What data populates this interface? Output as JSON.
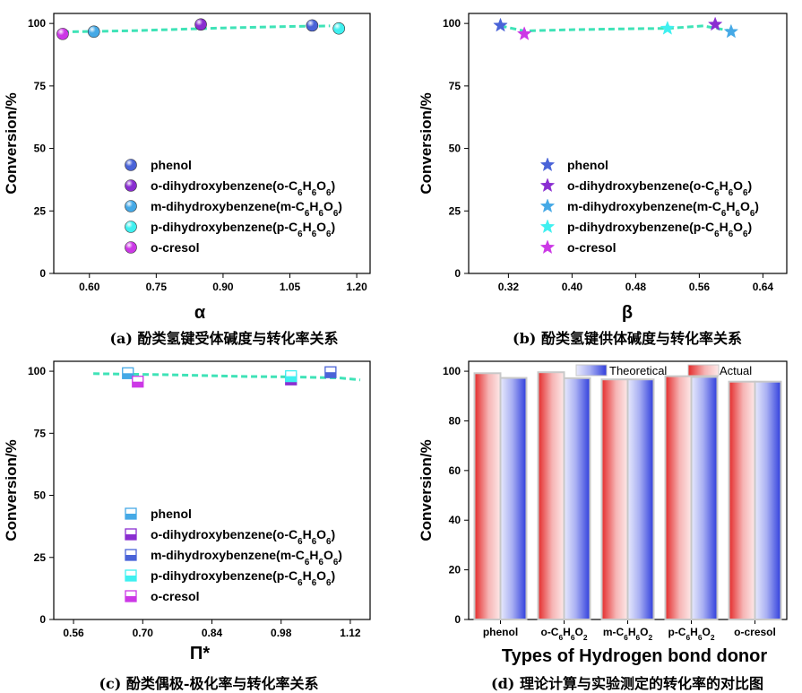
{
  "chart_data": [
    {
      "id": "a",
      "type": "scatter",
      "caption": "(a) 酚类氢键受体碱度与转化率关系",
      "xlabel": "α",
      "ylabel": "Conversion/%",
      "xlim": [
        0.52,
        1.23
      ],
      "ylim": [
        0,
        104
      ],
      "xticks": [
        0.6,
        0.75,
        0.9,
        1.05,
        1.2
      ],
      "xtick_labels": [
        "0.60",
        "0.75",
        "0.90",
        "1.05",
        "1.20"
      ],
      "yticks": [
        0,
        25,
        50,
        75,
        100
      ],
      "ytick_labels": [
        "0",
        "25",
        "50",
        "75",
        "100"
      ],
      "marker": "sphere",
      "trend": [
        [
          0.54,
          96.6
        ],
        [
          0.7,
          97.1
        ],
        [
          0.9,
          98.2
        ],
        [
          1.05,
          98.8
        ],
        [
          1.14,
          99.0
        ]
      ],
      "series": [
        {
          "name": "phenol",
          "color": "#4a63d8",
          "points": [
            [
              1.1,
              99.2
            ]
          ]
        },
        {
          "name": "o-dihydroxybenzene(o-C",
          "sub": "6",
          "mid": "H",
          "sub2": "6",
          "mid2": "O",
          "sub3": "6",
          "close": ")",
          "color": "#8a2ed1",
          "points": [
            [
              0.85,
              99.6
            ]
          ]
        },
        {
          "name": "m-dihydroxybenzene(m-C",
          "sub": "6",
          "mid": "H",
          "sub2": "6",
          "mid2": "O",
          "sub3": "6",
          "close": ")",
          "color": "#45a9e6",
          "points": [
            [
              0.61,
              96.7
            ]
          ]
        },
        {
          "name": "p-dihydroxybenzene(p-C",
          "sub": "6",
          "mid": "H",
          "sub2": "6",
          "mid2": "O",
          "sub3": "6",
          "close": ")",
          "color": "#3ff0f0",
          "points": [
            [
              1.16,
              98.0
            ]
          ]
        },
        {
          "name": "o-cresol",
          "color": "#cc38e6",
          "points": [
            [
              0.54,
              95.8
            ]
          ]
        }
      ]
    },
    {
      "id": "b",
      "type": "scatter",
      "caption": "(b) 酚类氢键供体碱度与转化率关系",
      "xlabel": "β",
      "ylabel": "Conversion/%",
      "xlim": [
        0.27,
        0.67
      ],
      "ylim": [
        0,
        104
      ],
      "xticks": [
        0.32,
        0.4,
        0.48,
        0.56,
        0.64
      ],
      "xtick_labels": [
        "0.32",
        "0.40",
        "0.48",
        "0.56",
        "0.64"
      ],
      "yticks": [
        0,
        25,
        50,
        75,
        100
      ],
      "ytick_labels": [
        "0",
        "25",
        "50",
        "75",
        "100"
      ],
      "marker": "star",
      "trend": [
        [
          0.31,
          99.0
        ],
        [
          0.34,
          97.0
        ],
        [
          0.4,
          97.5
        ],
        [
          0.48,
          97.9
        ],
        [
          0.52,
          98.0
        ],
        [
          0.565,
          99.0
        ],
        [
          0.6,
          97.0
        ]
      ],
      "series": [
        {
          "name": "phenol",
          "color": "#4a63d8",
          "points": [
            [
              0.31,
              99.2
            ]
          ]
        },
        {
          "name": "o-dihydroxybenzene(o-C",
          "sub": "6",
          "mid": "H",
          "sub2": "6",
          "mid2": "O",
          "sub3": "6",
          "close": ")",
          "color": "#8a2ed1",
          "points": [
            [
              0.58,
              99.6
            ]
          ]
        },
        {
          "name": "m-dihydroxybenzene(m-C",
          "sub": "6",
          "mid": "H",
          "sub2": "6",
          "mid2": "O",
          "sub3": "6",
          "close": ")",
          "color": "#45a9e6",
          "points": [
            [
              0.6,
              96.7
            ]
          ]
        },
        {
          "name": "p-dihydroxybenzene(p-C",
          "sub": "6",
          "mid": "H",
          "sub2": "6",
          "mid2": "O",
          "sub3": "6",
          "close": ")",
          "color": "#3ff0f0",
          "points": [
            [
              0.52,
              98.0
            ]
          ]
        },
        {
          "name": "o-cresol",
          "color": "#cc38e6",
          "points": [
            [
              0.34,
              95.8
            ]
          ]
        }
      ]
    },
    {
      "id": "c",
      "type": "scatter",
      "caption": "(c) 酚类偶极-极化率与转化率关系",
      "xlabel": "Π*",
      "ylabel": "Conversion/%",
      "xlim": [
        0.52,
        1.16
      ],
      "ylim": [
        0,
        104
      ],
      "xticks": [
        0.56,
        0.7,
        0.84,
        0.98,
        1.12
      ],
      "xtick_labels": [
        "0.56",
        "0.70",
        "0.84",
        "0.98",
        "1.12"
      ],
      "yticks": [
        0,
        25,
        50,
        75,
        100
      ],
      "ytick_labels": [
        "0",
        "25",
        "50",
        "75",
        "100"
      ],
      "marker": "halfsquare",
      "trend": [
        [
          0.6,
          99.0
        ],
        [
          0.75,
          98.6
        ],
        [
          0.9,
          97.9
        ],
        [
          1.0,
          97.7
        ],
        [
          1.1,
          97.3
        ],
        [
          1.14,
          96.5
        ]
      ],
      "series": [
        {
          "name": "phenol",
          "color": "#45a9e6",
          "points": [
            [
              0.67,
              99.2
            ]
          ]
        },
        {
          "name": "o-dihydroxybenzene(o-C",
          "sub": "6",
          "mid": "H",
          "sub2": "6",
          "mid2": "O",
          "sub3": "6",
          "close": ")",
          "color": "#8a2ed1",
          "points": [
            [
              1.0,
              96.7
            ]
          ]
        },
        {
          "name": "m-dihydroxybenzene(m-C",
          "sub": "6",
          "mid": "H",
          "sub2": "6",
          "mid2": "O",
          "sub3": "6",
          "close": ")",
          "color": "#4a63d8",
          "points": [
            [
              1.08,
              99.6
            ]
          ]
        },
        {
          "name": "p-dihydroxybenzene(p-C",
          "sub": "6",
          "mid": "H",
          "sub2": "6",
          "mid2": "O",
          "sub3": "6",
          "close": ")",
          "color": "#3ff0f0",
          "points": [
            [
              1.0,
              98.0
            ]
          ]
        },
        {
          "name": "o-cresol",
          "color": "#cc38e6",
          "points": [
            [
              0.69,
              95.8
            ]
          ]
        }
      ]
    },
    {
      "id": "d",
      "type": "bar",
      "caption": "(d) 理论计算与实验测定的转化率的对比图",
      "xlabel": "Types of Hydrogen bond donor",
      "ylabel": "Conversion/%",
      "ylim": [
        0,
        104
      ],
      "yticks": [
        0,
        20,
        40,
        60,
        80,
        100
      ],
      "ytick_labels": [
        "0",
        "20",
        "40",
        "60",
        "80",
        "100"
      ],
      "categories": [
        {
          "pre": "phenol"
        },
        {
          "pre": "o-C",
          "s1": "6",
          "m1": "H",
          "s2": "6",
          "m2": "O",
          "s3": "2"
        },
        {
          "pre": "m-C",
          "s1": "6",
          "m1": "H",
          "s2": "6",
          "m2": "O",
          "s3": "2"
        },
        {
          "pre": "p-C",
          "s1": "6",
          "m1": "H",
          "s2": "6",
          "m2": "O",
          "s3": "2"
        },
        {
          "pre": "o-cresol"
        }
      ],
      "series": [
        {
          "name": "Actual",
          "color": "#e53b3b",
          "values": [
            99.2,
            99.6,
            96.7,
            98.0,
            95.8
          ]
        },
        {
          "name": "Theoretical",
          "color": "#3a48e0",
          "values": [
            97.3,
            97.2,
            96.7,
            97.7,
            95.8
          ]
        }
      ],
      "legend": "top"
    }
  ]
}
